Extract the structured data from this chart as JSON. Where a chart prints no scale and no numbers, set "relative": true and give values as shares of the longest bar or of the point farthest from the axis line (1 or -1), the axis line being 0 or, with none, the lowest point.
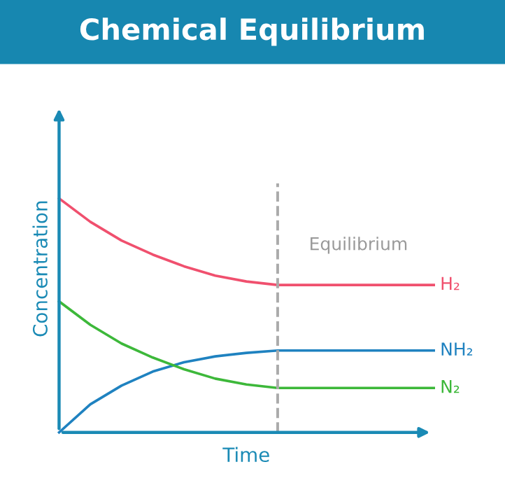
{
  "chart_data": {
    "type": "line",
    "title": "Chemical Equilibrium",
    "xlabel": "Time",
    "ylabel": "Concentration",
    "relative": true,
    "legend": false,
    "marker": "none",
    "line_style": "solid",
    "categories": [
      null,
      null,
      null,
      null,
      null,
      null,
      null,
      null,
      null,
      null,
      null,
      null,
      null
    ],
    "series": [
      {
        "name": "H₂",
        "color": "#f0506e",
        "values": [
          1,
          0.9,
          0.82,
          0.76,
          0.71,
          0.67,
          0.645,
          0.63,
          0.63,
          0.63,
          0.63,
          0.63,
          0.63
        ]
      },
      {
        "name": "NH₂",
        "color": "#1f82c0",
        "values": [
          0,
          0.12,
          0.2,
          0.26,
          0.3,
          0.325,
          0.34,
          0.35,
          0.35,
          0.35,
          0.35,
          0.35,
          0.35
        ]
      },
      {
        "name": "N₂",
        "color": "#3db83a",
        "values": [
          0.56,
          0.46,
          0.38,
          0.32,
          0.27,
          0.23,
          0.205,
          0.19,
          0.19,
          0.19,
          0.19,
          0.19,
          0.19
        ]
      }
    ],
    "annotations": [
      "Equilibrium"
    ]
  }
}
